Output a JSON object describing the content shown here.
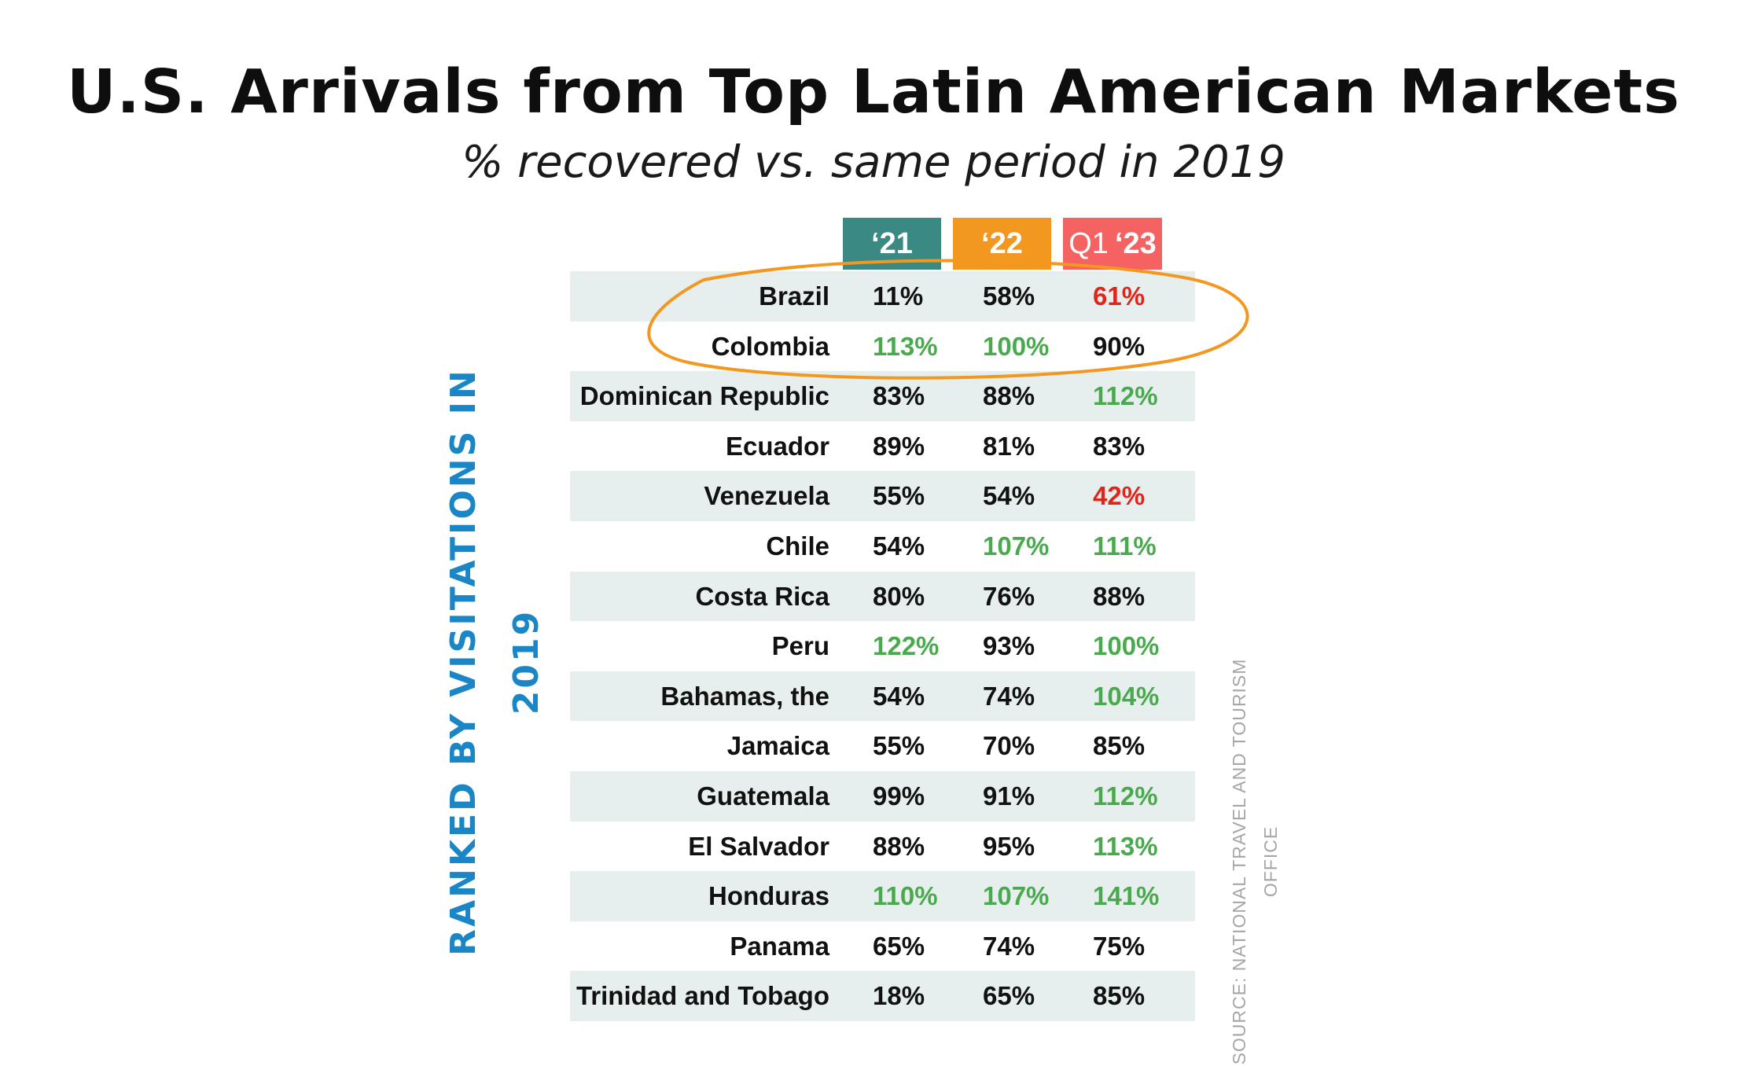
{
  "title": "U.S. Arrivals from Top Latin American Markets",
  "subtitle": "% recovered vs. same period in 2019",
  "side_label": "RANKED BY VISITATIONS IN 2019",
  "source": "SOURCE: NATIONAL TRAVEL AND TOURISM OFFICE",
  "colors": {
    "tab_21": "#3a8982",
    "tab_22": "#f2971f",
    "tab_23": "#f56262",
    "side_label": "#1b86c6",
    "green": "#4aa94f",
    "red": "#e0261b",
    "black": "#111111",
    "highlight_ellipse": "#f2971f",
    "row_shade": "#e6efee"
  },
  "chart_data": {
    "type": "table",
    "title": "U.S. Arrivals from Top Latin American Markets",
    "subtitle": "% recovered vs. same period in 2019",
    "columns": [
      {
        "label": "‘21"
      },
      {
        "label": "‘22"
      },
      {
        "label": "Q1 ‘23",
        "prefix": "Q1",
        "year": "‘23"
      }
    ],
    "highlighted_rows": [
      "Brazil",
      "Colombia"
    ],
    "rows": [
      {
        "country": "Brazil",
        "values": [
          "11%",
          "58%",
          "61%"
        ],
        "colors": [
          "black",
          "black",
          "red"
        ]
      },
      {
        "country": "Colombia",
        "values": [
          "113%",
          "100%",
          "90%"
        ],
        "colors": [
          "green",
          "green",
          "black"
        ]
      },
      {
        "country": "Dominican Republic",
        "values": [
          "83%",
          "88%",
          "112%"
        ],
        "colors": [
          "black",
          "black",
          "green"
        ]
      },
      {
        "country": "Ecuador",
        "values": [
          "89%",
          "81%",
          "83%"
        ],
        "colors": [
          "black",
          "black",
          "black"
        ]
      },
      {
        "country": "Venezuela",
        "values": [
          "55%",
          "54%",
          "42%"
        ],
        "colors": [
          "black",
          "black",
          "red"
        ]
      },
      {
        "country": "Chile",
        "values": [
          "54%",
          "107%",
          "111%"
        ],
        "colors": [
          "black",
          "green",
          "green"
        ]
      },
      {
        "country": "Costa Rica",
        "values": [
          "80%",
          "76%",
          "88%"
        ],
        "colors": [
          "black",
          "black",
          "black"
        ]
      },
      {
        "country": "Peru",
        "values": [
          "122%",
          "93%",
          "100%"
        ],
        "colors": [
          "green",
          "black",
          "green"
        ]
      },
      {
        "country": "Bahamas, the",
        "values": [
          "54%",
          "74%",
          "104%"
        ],
        "colors": [
          "black",
          "black",
          "green"
        ]
      },
      {
        "country": "Jamaica",
        "values": [
          "55%",
          "70%",
          "85%"
        ],
        "colors": [
          "black",
          "black",
          "black"
        ]
      },
      {
        "country": "Guatemala",
        "values": [
          "99%",
          "91%",
          "112%"
        ],
        "colors": [
          "black",
          "black",
          "green"
        ]
      },
      {
        "country": "El Salvador",
        "values": [
          "88%",
          "95%",
          "113%"
        ],
        "colors": [
          "black",
          "black",
          "green"
        ]
      },
      {
        "country": "Honduras",
        "values": [
          "110%",
          "107%",
          "141%"
        ],
        "colors": [
          "green",
          "green",
          "green"
        ]
      },
      {
        "country": "Panama",
        "values": [
          "65%",
          "74%",
          "75%"
        ],
        "colors": [
          "black",
          "black",
          "black"
        ]
      },
      {
        "country": "Trinidad and Tobago",
        "values": [
          "18%",
          "65%",
          "85%"
        ],
        "colors": [
          "black",
          "black",
          "black"
        ]
      }
    ]
  }
}
